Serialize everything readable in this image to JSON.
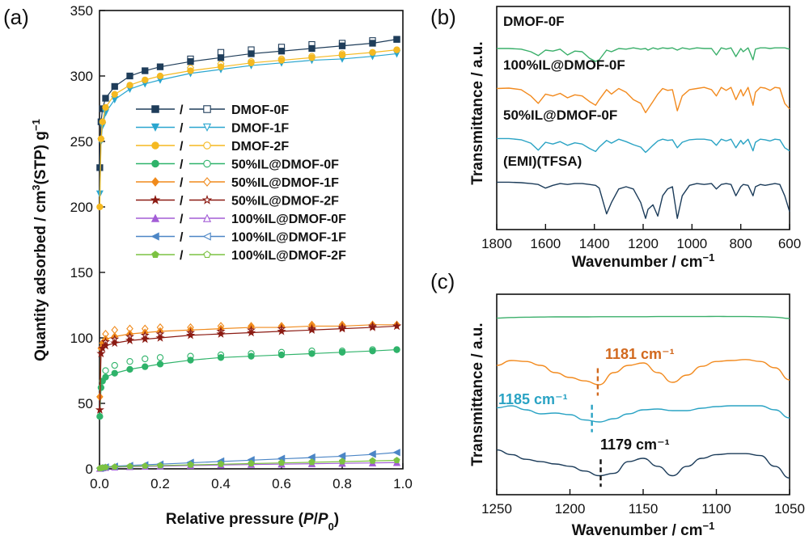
{
  "figure": {
    "tags": [
      "(a)",
      "(b)",
      "(c)"
    ]
  },
  "chart_data": [
    {
      "type": "scatter",
      "panel": "(a)",
      "xlabel": "Relative pressure (P/P0)",
      "ylabel": "Quantity adsorbed / cm3(STP) g-1",
      "xlim": [
        0.0,
        1.0
      ],
      "ylim": [
        0,
        350
      ],
      "xticks": [
        "0.0",
        "0.2",
        "0.4",
        "0.6",
        "0.8",
        "1.0"
      ],
      "yticks": [
        "0",
        "50",
        "100",
        "150",
        "200",
        "250",
        "300",
        "350"
      ],
      "legend_sep": "/",
      "legend_position": "center",
      "x": [
        0.001,
        0.005,
        0.01,
        0.02,
        0.05,
        0.1,
        0.15,
        0.2,
        0.3,
        0.4,
        0.5,
        0.6,
        0.7,
        0.8,
        0.9,
        0.98
      ],
      "series": [
        {
          "name": "DMOF-0F",
          "color": "#1f3d5a",
          "marker": "square",
          "adsorption": [
            230,
            265,
            275,
            283,
            292,
            300,
            304,
            307,
            311,
            314,
            317,
            319,
            321,
            323,
            325,
            328
          ],
          "desorption": [
            null,
            null,
            null,
            null,
            null,
            null,
            null,
            null,
            313,
            318,
            320,
            322,
            324,
            325,
            327,
            328
          ]
        },
        {
          "name": "DMOF-1F",
          "color": "#2aa6cf",
          "marker": "triangle-down",
          "adsorption": [
            210,
            250,
            262,
            272,
            282,
            290,
            294,
            297,
            302,
            305,
            308,
            310,
            312,
            313,
            315,
            317
          ],
          "desorption": [
            null,
            null,
            null,
            null,
            null,
            null,
            null,
            null,
            304,
            307,
            309,
            311,
            313,
            314,
            316,
            317
          ]
        },
        {
          "name": "DMOF-2F",
          "color": "#f5b921",
          "marker": "circle",
          "adsorption": [
            200,
            252,
            265,
            276,
            286,
            293,
            297,
            300,
            304,
            307,
            310,
            312,
            314,
            316,
            318,
            320
          ],
          "desorption": [
            null,
            null,
            null,
            null,
            null,
            null,
            null,
            null,
            306,
            309,
            311,
            313,
            315,
            317,
            318,
            320
          ]
        },
        {
          "name": "50%IL@DMOF-0F",
          "color": "#2fb36a",
          "marker": "circle",
          "adsorption": [
            40,
            62,
            67,
            70,
            73,
            76,
            78,
            80,
            83,
            85,
            86,
            87,
            88,
            89,
            90,
            91
          ],
          "desorption": [
            null,
            null,
            null,
            75,
            79,
            82,
            84,
            85,
            86,
            87,
            88,
            89,
            90,
            90,
            91,
            91
          ]
        },
        {
          "name": "50%IL@DMOF-1F",
          "color": "#f08a1c",
          "marker": "diamond",
          "adsorption": [
            55,
            92,
            96,
            99,
            101,
            103,
            104,
            105,
            106,
            107,
            108,
            108,
            109,
            109,
            110,
            110
          ],
          "desorption": [
            null,
            null,
            null,
            103,
            106,
            107,
            107,
            108,
            108,
            109,
            109,
            109,
            110,
            110,
            110,
            110
          ]
        },
        {
          "name": "50%IL@DMOF-2F",
          "color": "#8b1a12",
          "marker": "star",
          "adsorption": [
            45,
            88,
            92,
            94,
            96,
            98,
            99,
            100,
            102,
            103,
            104,
            105,
            106,
            107,
            108,
            109
          ],
          "desorption": [
            null,
            null,
            null,
            97,
            99,
            101,
            102,
            103,
            104,
            105,
            106,
            107,
            107,
            108,
            109,
            109
          ]
        },
        {
          "name": "100%IL@DMOF-0F",
          "color": "#a35dd6",
          "marker": "triangle-up",
          "adsorption": [
            0.3,
            0.5,
            0.8,
            1.0,
            1.3,
            1.6,
            1.9,
            2.1,
            2.5,
            2.9,
            3.3,
            3.6,
            3.9,
            4.2,
            4.5,
            4.8
          ],
          "desorption": [
            null,
            null,
            null,
            null,
            null,
            null,
            null,
            null,
            3.0,
            3.3,
            3.6,
            3.9,
            4.2,
            4.4,
            4.6,
            4.8
          ]
        },
        {
          "name": "100%IL@DMOF-1F",
          "color": "#4c86c6",
          "marker": "triangle-left",
          "adsorption": [
            0.4,
            0.8,
            1.1,
            1.5,
            2.0,
            2.6,
            3.1,
            3.6,
            4.6,
            5.6,
            6.6,
            7.6,
            8.6,
            9.6,
            11.0,
            12.5
          ],
          "desorption": [
            null,
            null,
            null,
            null,
            null,
            null,
            null,
            null,
            5.0,
            6.0,
            7.0,
            8.0,
            9.0,
            10.0,
            11.5,
            12.5
          ]
        },
        {
          "name": "100%IL@DMOF-2F",
          "color": "#7cc242",
          "marker": "pentagon",
          "adsorption": [
            0.3,
            0.6,
            0.9,
            1.2,
            1.5,
            1.9,
            2.2,
            2.5,
            3.0,
            3.5,
            4.0,
            4.5,
            5.0,
            5.5,
            6.0,
            6.5
          ],
          "desorption": [
            null,
            null,
            null,
            null,
            null,
            null,
            null,
            null,
            3.3,
            3.8,
            4.3,
            4.8,
            5.3,
            5.8,
            6.2,
            6.5
          ]
        }
      ]
    },
    {
      "type": "line",
      "panel": "(b)",
      "xlabel": "Wavenumber / cm-1",
      "ylabel": "Transmittance / a.u.",
      "xlim": [
        1800,
        600
      ],
      "xticks": [
        "1800",
        "1600",
        "1400",
        "1200",
        "1000",
        "800",
        "600"
      ],
      "x": [
        1800,
        1750,
        1700,
        1660,
        1630,
        1600,
        1570,
        1540,
        1510,
        1480,
        1450,
        1420,
        1395,
        1380,
        1350,
        1330,
        1300,
        1270,
        1240,
        1210,
        1190,
        1180,
        1160,
        1140,
        1120,
        1100,
        1080,
        1060,
        1040,
        1010,
        980,
        950,
        920,
        900,
        880,
        860,
        840,
        820,
        800,
        790,
        770,
        750,
        740,
        720,
        700,
        680,
        660,
        640,
        620,
        600
      ],
      "series": [
        {
          "name": "DMOF-0F",
          "color": "#3aaf6a",
          "y": [
            0.6,
            0.6,
            0.58,
            0.5,
            0.38,
            0.55,
            0.52,
            0.58,
            0.4,
            0.52,
            0.5,
            0.3,
            0.2,
            0.25,
            0.55,
            0.5,
            0.6,
            0.58,
            0.62,
            0.58,
            0.6,
            0.55,
            0.62,
            0.58,
            0.62,
            0.6,
            0.62,
            0.55,
            0.62,
            0.58,
            0.62,
            0.6,
            0.6,
            0.4,
            0.62,
            0.58,
            0.62,
            0.35,
            0.6,
            0.5,
            0.62,
            0.25,
            0.58,
            0.62,
            0.62,
            0.6,
            0.62,
            0.62,
            0.62,
            0.58
          ]
        },
        {
          "name": "100%IL@DMOF-0F",
          "color": "#f28a1e",
          "y": [
            0.75,
            0.76,
            0.72,
            0.55,
            0.35,
            0.6,
            0.55,
            0.62,
            0.5,
            0.58,
            0.55,
            0.4,
            0.3,
            0.45,
            0.72,
            0.6,
            0.75,
            0.65,
            0.45,
            0.35,
            0.1,
            0.2,
            0.4,
            0.6,
            0.75,
            0.7,
            0.72,
            0.15,
            0.55,
            0.72,
            0.75,
            0.78,
            0.72,
            0.55,
            0.78,
            0.7,
            0.78,
            0.45,
            0.72,
            0.55,
            0.78,
            0.3,
            0.65,
            0.78,
            0.76,
            0.7,
            0.78,
            0.76,
            0.35,
            0.2
          ]
        },
        {
          "name": "50%IL@DMOF-0F",
          "color": "#2aa3c4",
          "y": [
            0.7,
            0.7,
            0.66,
            0.55,
            0.32,
            0.58,
            0.52,
            0.6,
            0.48,
            0.56,
            0.52,
            0.38,
            0.28,
            0.42,
            0.64,
            0.55,
            0.68,
            0.6,
            0.5,
            0.42,
            0.25,
            0.32,
            0.48,
            0.62,
            0.68,
            0.64,
            0.66,
            0.4,
            0.58,
            0.66,
            0.68,
            0.68,
            0.64,
            0.48,
            0.68,
            0.62,
            0.68,
            0.4,
            0.64,
            0.52,
            0.68,
            0.3,
            0.58,
            0.68,
            0.66,
            0.62,
            0.68,
            0.66,
            0.4,
            0.3
          ]
        },
        {
          "name": "(EMI)(TFSA)",
          "color": "#1c3c5a",
          "y": [
            0.85,
            0.85,
            0.84,
            0.82,
            0.8,
            0.72,
            0.78,
            0.82,
            0.8,
            0.82,
            0.82,
            0.8,
            0.78,
            0.72,
            0.15,
            0.4,
            0.7,
            0.75,
            0.7,
            0.4,
            0.05,
            0.25,
            0.35,
            0.1,
            0.55,
            0.7,
            0.75,
            0.05,
            0.55,
            0.78,
            0.82,
            0.8,
            0.82,
            0.7,
            0.8,
            0.82,
            0.8,
            0.55,
            0.75,
            0.8,
            0.78,
            0.55,
            0.75,
            0.8,
            0.78,
            0.8,
            0.82,
            0.8,
            0.55,
            0.2
          ]
        }
      ]
    },
    {
      "type": "line",
      "panel": "(c)",
      "xlabel": "Wavenumber / cm-1",
      "ylabel": "Transmittance / a.u.",
      "xlim": [
        1250,
        1050
      ],
      "xticks": [
        "1250",
        "1200",
        "1150",
        "1100",
        "1050"
      ],
      "x": [
        1250,
        1240,
        1230,
        1220,
        1210,
        1200,
        1190,
        1180,
        1170,
        1160,
        1150,
        1140,
        1130,
        1120,
        1110,
        1100,
        1090,
        1080,
        1070,
        1060,
        1050
      ],
      "series": [
        {
          "name": "DMOF-0F",
          "color": "#3aaf6a",
          "y": [
            0.62,
            0.66,
            0.68,
            0.69,
            0.7,
            0.7,
            0.7,
            0.71,
            0.71,
            0.71,
            0.71,
            0.72,
            0.72,
            0.72,
            0.72,
            0.73,
            0.72,
            0.72,
            0.71,
            0.68,
            0.6
          ]
        },
        {
          "name": "100%IL@DMOF-0F",
          "color": "#f28a1e",
          "y": [
            0.7,
            0.8,
            0.78,
            0.7,
            0.55,
            0.45,
            0.38,
            0.3,
            0.55,
            0.7,
            0.75,
            0.55,
            0.35,
            0.5,
            0.68,
            0.78,
            0.8,
            0.82,
            0.78,
            0.65,
            0.4
          ]
        },
        {
          "name": "50%IL@DMOF-0F",
          "color": "#2aa3c4",
          "y": [
            0.75,
            0.8,
            0.7,
            0.6,
            0.62,
            0.58,
            0.45,
            0.4,
            0.48,
            0.6,
            0.7,
            0.72,
            0.68,
            0.68,
            0.74,
            0.78,
            0.8,
            0.8,
            0.8,
            0.7,
            0.5
          ]
        },
        {
          "name": "(EMI)(TFSA)",
          "color": "#1c3c5a",
          "y": [
            0.8,
            0.7,
            0.6,
            0.55,
            0.5,
            0.45,
            0.35,
            0.25,
            0.3,
            0.55,
            0.62,
            0.45,
            0.25,
            0.45,
            0.62,
            0.7,
            0.72,
            0.72,
            0.68,
            0.45,
            0.2
          ]
        }
      ],
      "annotations": [
        {
          "label": "1181 cm-1",
          "x": 1181,
          "series": "100%IL@DMOF-0F",
          "color": "#d2691e"
        },
        {
          "label": "1185 cm-1",
          "x": 1185,
          "series": "50%IL@DMOF-0F",
          "color": "#2aa3c4"
        },
        {
          "label": "1179 cm-1",
          "x": 1179,
          "series": "(EMI)(TFSA)",
          "color": "#111111"
        }
      ]
    }
  ]
}
